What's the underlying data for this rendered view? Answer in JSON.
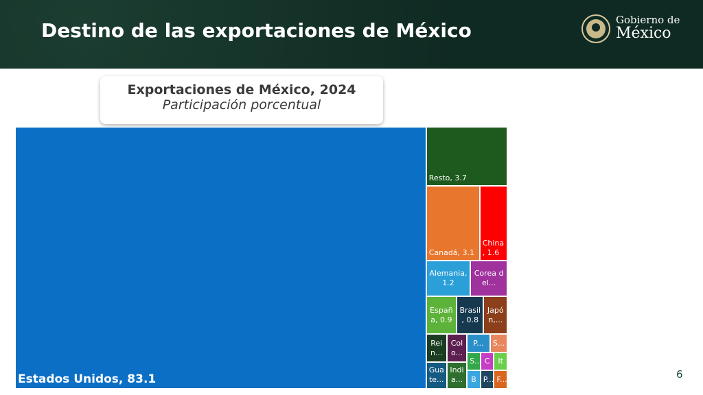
{
  "header": {
    "title": "Destino de las exportaciones de México",
    "logo_line1": "Gobierno de",
    "logo_line2": "México"
  },
  "chart_data": {
    "type": "treemap",
    "title": "Exportaciones de México, 2024",
    "subtitle": "Participación porcentual",
    "value_labels": [
      "Estados Unidos, 83.1",
      "Resto, 3.7",
      "Canadá, 3.1",
      "China\n, 1.6",
      "Alemania,\n1.2",
      "Corea d\nel...",
      "Españ\na, 0.9",
      "Brasil\n, 0.8",
      "Japó\nn,...",
      "Rei\nn...",
      "Gua\nte...",
      "Col\no...",
      "Indi\na...",
      "P...",
      "S...",
      "S...",
      "C",
      "It",
      "B",
      "P...",
      "F..."
    ],
    "values": [
      83.1,
      3.7,
      3.1,
      1.6,
      1.2,
      1.0,
      0.9,
      0.8,
      0.7,
      0.44,
      0.43,
      0.43,
      0.42,
      0.32,
      0.24,
      0.19,
      0.19,
      0.19,
      0.19,
      0.19,
      0.19
    ],
    "colors": [
      "#0b6fc6",
      "#1e5a1e",
      "#e8762c",
      "#fe0000",
      "#2b9fd8",
      "#a0329e",
      "#5db339",
      "#17394f",
      "#8b3f1a",
      "#1b3d22",
      "#155a80",
      "#5c1f4f",
      "#2e6e2e",
      "#2a8fc9",
      "#e8865c",
      "#33a84a",
      "#c63ec4",
      "#6ccf4c",
      "#3aa6e0",
      "#1f4660",
      "#d9651e"
    ]
  },
  "page_number": 6
}
